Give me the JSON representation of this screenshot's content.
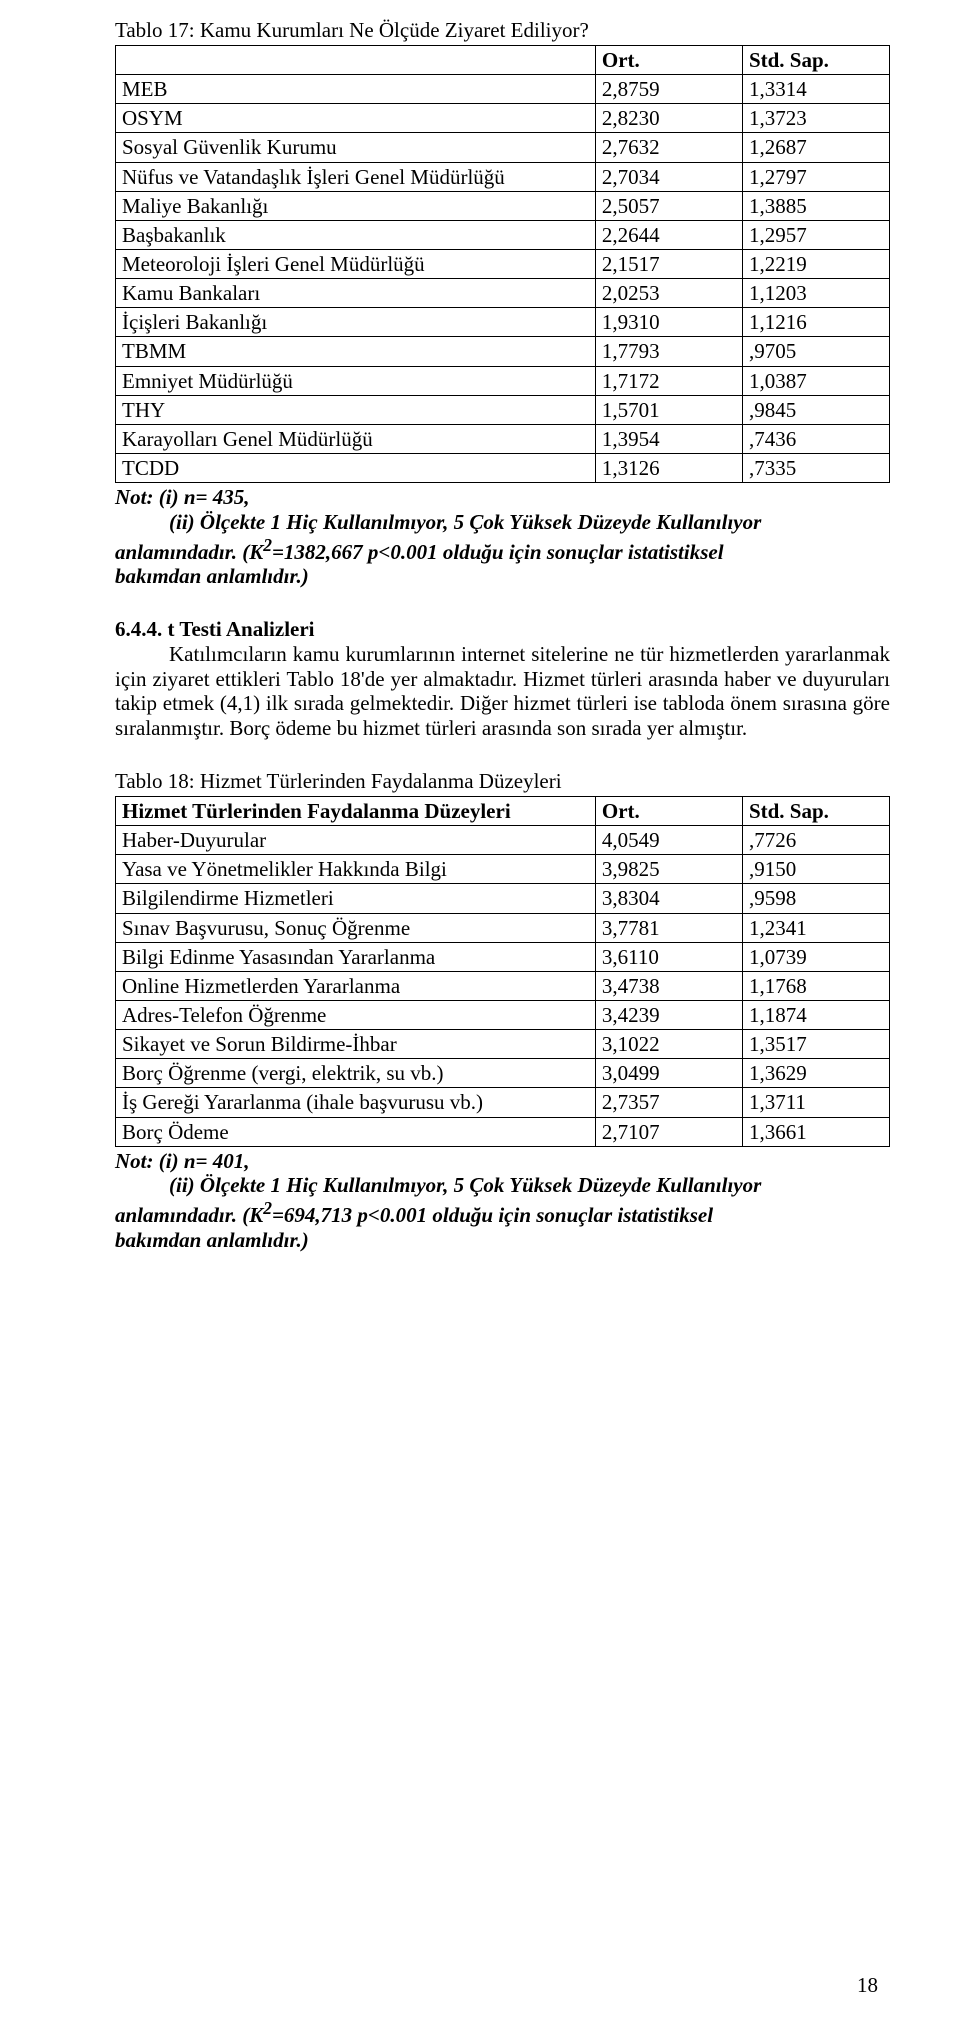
{
  "table17": {
    "title": "Tablo 17: Kamu Kurumları Ne Ölçüde Ziyaret Ediliyor?",
    "headers": [
      "",
      "Ort.",
      "Std. Sap."
    ],
    "rows": [
      [
        "MEB",
        "2,8759",
        "1,3314"
      ],
      [
        "OSYM",
        "2,8230",
        "1,3723"
      ],
      [
        "Sosyal Güvenlik Kurumu",
        "2,7632",
        "1,2687"
      ],
      [
        "Nüfus ve Vatandaşlık İşleri Genel Müdürlüğü",
        "2,7034",
        "1,2797"
      ],
      [
        "Maliye Bakanlığı",
        "2,5057",
        "1,3885"
      ],
      [
        "Başbakanlık",
        "2,2644",
        "1,2957"
      ],
      [
        "Meteoroloji İşleri Genel Müdürlüğü",
        "2,1517",
        "1,2219"
      ],
      [
        "Kamu Bankaları",
        "2,0253",
        "1,1203"
      ],
      [
        "İçişleri Bakanlığı",
        "1,9310",
        "1,1216"
      ],
      [
        "TBMM",
        "1,7793",
        ",9705"
      ],
      [
        "Emniyet Müdürlüğü",
        "1,7172",
        "1,0387"
      ],
      [
        "THY",
        "1,5701",
        ",9845"
      ],
      [
        "Karayolları Genel Müdürlüğü",
        "1,3954",
        ",7436"
      ],
      [
        "TCDD",
        "1,3126",
        ",7335"
      ]
    ]
  },
  "note17": {
    "line1_prefix": "Not: (i) n= 435,",
    "indent_ii": "(ii) Ölçekte 1 Hiç Kullanılmıyor, 5 Çok Yüksek Düzeyde Kullanılıyor",
    "line_anlam": "anlamındadır. (K",
    "sup": "2",
    "mid": "=1382,667 p<0.001 olduğu için sonuçlar istatistiksel",
    "last": "bakımdan anlamlıdır.)"
  },
  "section": {
    "number": "6.4.4. t Testi Analizleri",
    "p1": "Katılımcıların kamu kurumlarının internet sitelerine ne tür hizmetlerden yararlanmak için ziyaret ettikleri Tablo 18'de yer almaktadır. Hizmet türleri arasında haber ve duyuruları takip etmek (4,1) ilk sırada gelmektedir. Diğer hizmet türleri ise tabloda önem sırasına göre sıralanmıştır. Borç ödeme bu hizmet türleri arasında son sırada yer almıştır."
  },
  "table18": {
    "title": "Tablo 18: Hizmet Türlerinden Faydalanma Düzeyleri",
    "headers": [
      "Hizmet Türlerinden Faydalanma Düzeyleri",
      "Ort.",
      "Std. Sap."
    ],
    "rows": [
      [
        "Haber-Duyurular",
        "4,0549",
        ",7726"
      ],
      [
        "Yasa ve Yönetmelikler Hakkında Bilgi",
        "3,9825",
        ",9150"
      ],
      [
        "Bilgilendirme Hizmetleri",
        "3,8304",
        ",9598"
      ],
      [
        "Sınav Başvurusu, Sonuç Öğrenme",
        "3,7781",
        "1,2341"
      ],
      [
        "Bilgi Edinme Yasasından Yararlanma",
        "3,6110",
        "1,0739"
      ],
      [
        "Online Hizmetlerden Yararlanma",
        "3,4738",
        "1,1768"
      ],
      [
        "Adres-Telefon Öğrenme",
        "3,4239",
        "1,1874"
      ],
      [
        "Sikayet ve Sorun Bildirme-İhbar",
        "3,1022",
        "1,3517"
      ],
      [
        "Borç Öğrenme (vergi, elektrik, su vb.)",
        "3,0499",
        "1,3629"
      ],
      [
        "İş Gereği Yararlanma (ihale başvurusu vb.)",
        "2,7357",
        "1,3711"
      ],
      [
        "Borç Ödeme",
        "2,7107",
        "1,3661"
      ]
    ]
  },
  "note18": {
    "line1_prefix": "Not: (i) n= 401,",
    "indent_ii": "(ii) Ölçekte 1 Hiç Kullanılmıyor, 5 Çok Yüksek Düzeyde Kullanılıyor",
    "line_anlam": "anlamındadır. (K",
    "sup": "2",
    "mid": "=694,713 p<0.001 olduğu için sonuçlar istatistiksel",
    "last": "bakımdan anlamlıdır.)"
  },
  "page_number": "18"
}
